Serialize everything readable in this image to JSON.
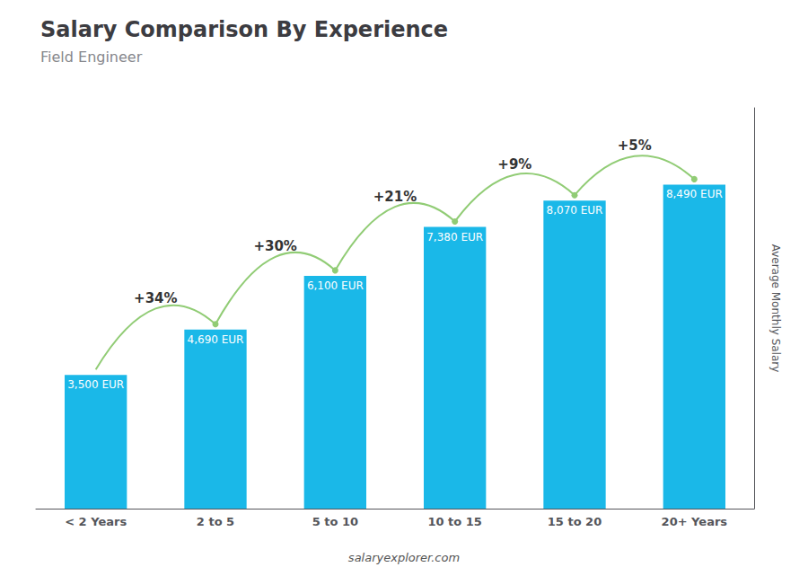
{
  "chart_data": {
    "type": "bar",
    "title": "Salary Comparison By Experience",
    "subtitle": "Field Engineer",
    "categories": [
      "< 2 Years",
      "2 to 5",
      "5 to 10",
      "10 to 15",
      "15 to 20",
      "20+ Years"
    ],
    "values": [
      3500,
      4690,
      6100,
      7380,
      8070,
      8490
    ],
    "value_labels": [
      "3,500 EUR",
      "4,690 EUR",
      "6,100 EUR",
      "7,380 EUR",
      "8,070 EUR",
      "8,490 EUR"
    ],
    "data_labels": true,
    "color": "#1ab8e8",
    "ylabel": "Average Monthly Salary",
    "annotations": [
      "+34%",
      "+30%",
      "+21%",
      "+9%",
      "+5%"
    ],
    "footer": "salaryexplorer.com",
    "ylim": [
      0,
      10500
    ],
    "grid": false,
    "tick_labels": "x"
  }
}
